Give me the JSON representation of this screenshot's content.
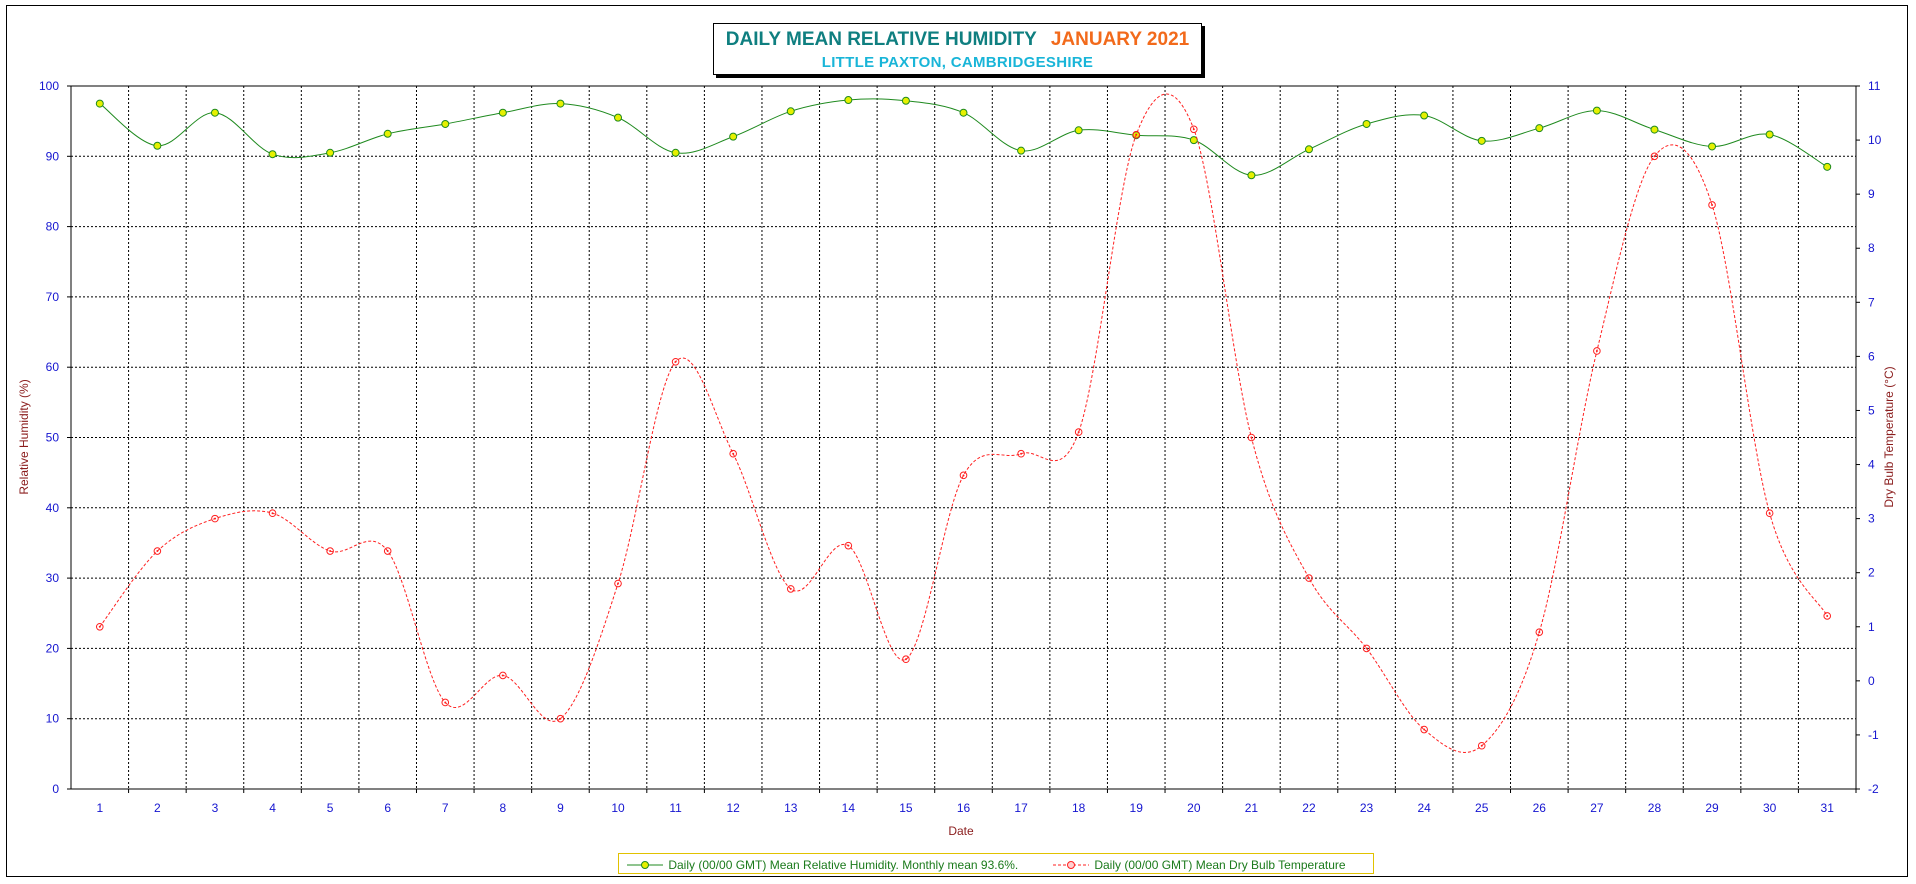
{
  "chart_data": {
    "type": "line",
    "title": "DAILY MEAN RELATIVE HUMIDITY",
    "title_month": "JANUARY 2021",
    "subtitle": "LITTLE PAXTON, CAMBRIDGESHIRE",
    "xlabel": "Date",
    "ylabel_left": "Relative Humidity (%)",
    "ylabel_right": "Dry Bulb Temperature (°C)",
    "x": [
      1,
      2,
      3,
      4,
      5,
      6,
      7,
      8,
      9,
      10,
      11,
      12,
      13,
      14,
      15,
      16,
      17,
      18,
      19,
      20,
      21,
      22,
      23,
      24,
      25,
      26,
      27,
      28,
      29,
      30,
      31
    ],
    "ylim_left": [
      0,
      100
    ],
    "yticks_left": [
      0,
      10,
      20,
      30,
      40,
      50,
      60,
      70,
      80,
      90,
      100
    ],
    "ylim_right": [
      -2,
      11
    ],
    "yticks_right": [
      -2,
      -1,
      0,
      1,
      2,
      3,
      4,
      5,
      6,
      7,
      8,
      9,
      10,
      11
    ],
    "grid": true,
    "legend_position": "bottom",
    "series": [
      {
        "name": "Daily (00/00 GMT) Mean Relative Humidity. Monthly mean 93.6%.",
        "axis": "left",
        "color": "#1f8a1f",
        "marker_color": "#e6f000",
        "values": [
          97.5,
          91.5,
          96.2,
          90.3,
          90.5,
          93.2,
          94.6,
          96.2,
          97.5,
          95.5,
          90.5,
          92.8,
          96.4,
          98.0,
          97.9,
          96.2,
          90.8,
          93.7,
          93.0,
          92.3,
          87.3,
          91.0,
          94.6,
          95.8,
          92.2,
          94.0,
          96.5,
          93.8,
          91.4,
          93.1,
          88.5
        ]
      },
      {
        "name": "Daily (00/00 GMT) Mean Dry Bulb Temperature",
        "axis": "right",
        "color": "#ff2020",
        "values": [
          1.0,
          2.4,
          3.0,
          3.1,
          2.4,
          2.4,
          -0.4,
          0.1,
          -0.7,
          1.8,
          5.9,
          4.2,
          1.7,
          2.5,
          0.4,
          3.8,
          4.2,
          4.6,
          10.1,
          10.2,
          4.5,
          1.9,
          0.6,
          -0.9,
          -1.2,
          0.9,
          6.1,
          9.7,
          8.8,
          3.1,
          1.2
        ]
      }
    ]
  }
}
